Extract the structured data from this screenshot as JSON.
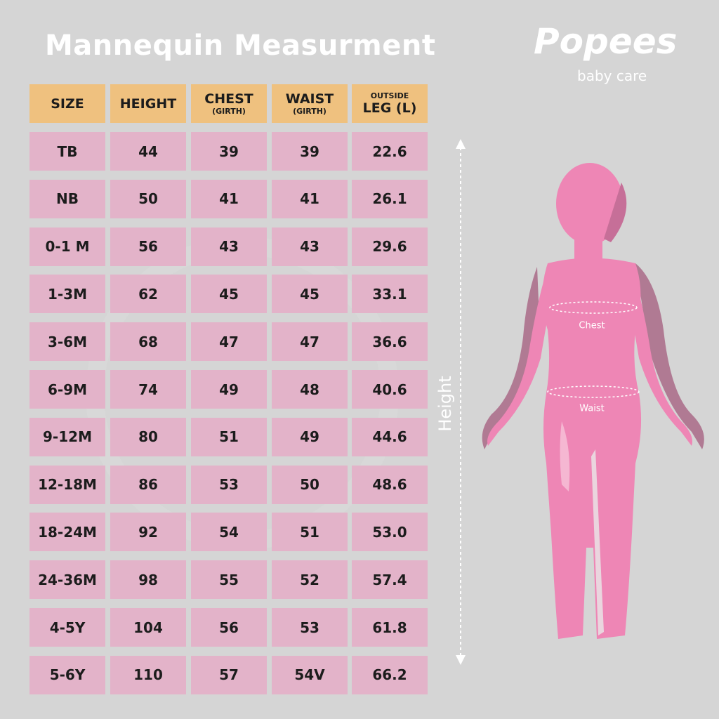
{
  "header": {
    "title": "Mannequin Measurment"
  },
  "logo": {
    "brand": "Popees",
    "tagline": "baby care"
  },
  "table": {
    "columns": [
      {
        "main": "SIZE"
      },
      {
        "main": "HEIGHT"
      },
      {
        "main": "CHEST",
        "sub": "(GIRTH)"
      },
      {
        "main": "WAIST",
        "sub": "(GIRTH)"
      },
      {
        "super": "OUTSIDE",
        "main": "LEG (L)"
      }
    ],
    "rows": [
      [
        "TB",
        "44",
        "39",
        "39",
        "22.6"
      ],
      [
        "NB",
        "50",
        "41",
        "41",
        "26.1"
      ],
      [
        "0-1 M",
        "56",
        "43",
        "43",
        "29.6"
      ],
      [
        "1-3M",
        "62",
        "45",
        "45",
        "33.1"
      ],
      [
        "3-6M",
        "68",
        "47",
        "47",
        "36.6"
      ],
      [
        "6-9M",
        "74",
        "49",
        "48",
        "40.6"
      ],
      [
        "9-12M",
        "80",
        "51",
        "49",
        "44.6"
      ],
      [
        "12-18M",
        "86",
        "53",
        "50",
        "48.6"
      ],
      [
        "18-24M",
        "92",
        "54",
        "51",
        "53.0"
      ],
      [
        "24-36M",
        "98",
        "55",
        "52",
        "57.4"
      ],
      [
        "4-5Y",
        "104",
        "56",
        "53",
        "61.8"
      ],
      [
        "5-6Y",
        "110",
        "57",
        "54V",
        "66.2"
      ]
    ]
  },
  "figure": {
    "height_label": "Height",
    "chest_label": "Chest",
    "waist_label": "Waist"
  }
}
